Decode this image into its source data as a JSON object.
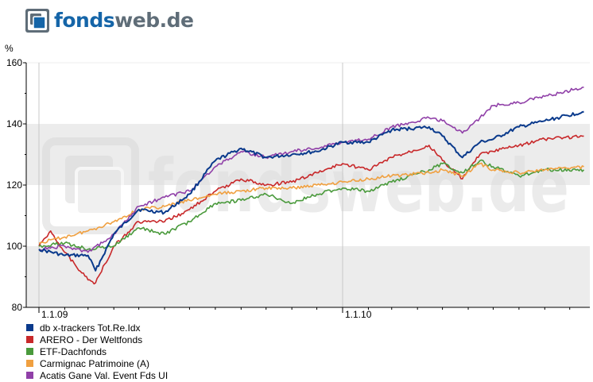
{
  "logo": {
    "part1": "fonds",
    "part2": "web.de",
    "watermark": "fondsweb.de"
  },
  "colors": {
    "band": "#ececec",
    "axis": "#000000",
    "grid": "#c8c8c8"
  },
  "chart_data": {
    "type": "line",
    "ylabel": "%",
    "ylim": [
      80,
      160
    ],
    "yticks": [
      80,
      100,
      120,
      140,
      160
    ],
    "xlim": [
      "2009-01-01",
      "2010-10-18"
    ],
    "xticks": [
      {
        "label": "1.1.09",
        "x": "2009-01-01"
      },
      {
        "label": "1.1.10",
        "x": "2010-01-01"
      }
    ],
    "bands": [
      [
        100,
        80
      ],
      [
        140,
        120
      ]
    ],
    "series": [
      {
        "name": "db x-trackers Tot.Re.Idx",
        "color": "#0a3a8c",
        "x": [
          "2009-01-01",
          "2009-02-01",
          "2009-03-01",
          "2009-03-10",
          "2009-04-01",
          "2009-05-01",
          "2009-06-01",
          "2009-07-01",
          "2009-08-01",
          "2009-09-01",
          "2009-10-01",
          "2009-11-01",
          "2009-12-01",
          "2010-01-01",
          "2010-02-01",
          "2010-03-01",
          "2010-04-15",
          "2010-05-01",
          "2010-05-25",
          "2010-06-15",
          "2010-07-01",
          "2010-08-01",
          "2010-09-01",
          "2010-10-18"
        ],
        "values": [
          99,
          97,
          97,
          92,
          104,
          112,
          111,
          117,
          128,
          132,
          129,
          130,
          131,
          134,
          134,
          138,
          139,
          136,
          129,
          134,
          135,
          139,
          141,
          144
        ]
      },
      {
        "name": "ARERO - Der Weltfonds",
        "color": "#c8282a",
        "x": [
          "2009-01-01",
          "2009-01-15",
          "2009-02-01",
          "2009-03-01",
          "2009-03-10",
          "2009-04-01",
          "2009-05-01",
          "2009-06-01",
          "2009-07-01",
          "2009-08-01",
          "2009-09-01",
          "2009-10-01",
          "2009-11-01",
          "2009-12-01",
          "2010-01-01",
          "2010-02-01",
          "2010-03-01",
          "2010-04-15",
          "2010-05-01",
          "2010-05-25",
          "2010-06-15",
          "2010-07-01",
          "2010-08-01",
          "2010-09-01",
          "2010-10-18"
        ],
        "values": [
          100,
          105,
          98,
          89,
          88,
          100,
          108,
          108,
          112,
          118,
          122,
          120,
          121,
          124,
          127,
          125,
          129,
          133,
          128,
          122,
          130,
          131,
          133,
          135,
          136
        ]
      },
      {
        "name": "ETF-Dachfonds",
        "color": "#4a9a3c",
        "x": [
          "2009-01-01",
          "2009-02-01",
          "2009-03-01",
          "2009-04-01",
          "2009-05-01",
          "2009-06-01",
          "2009-07-01",
          "2009-08-01",
          "2009-09-01",
          "2009-10-01",
          "2009-11-01",
          "2009-12-01",
          "2010-01-01",
          "2010-02-01",
          "2010-03-01",
          "2010-04-15",
          "2010-05-01",
          "2010-05-25",
          "2010-06-15",
          "2010-07-01",
          "2010-08-01",
          "2010-09-01",
          "2010-10-18"
        ],
        "values": [
          100,
          101,
          99,
          100,
          106,
          104,
          108,
          114,
          115,
          117,
          114,
          117,
          119,
          118,
          121,
          125,
          127,
          124,
          128,
          126,
          123,
          125,
          125
        ]
      },
      {
        "name": "Carmignac Patrimoine (A)",
        "color": "#f0a040",
        "x": [
          "2009-01-01",
          "2009-02-01",
          "2009-03-01",
          "2009-04-01",
          "2009-05-01",
          "2009-06-01",
          "2009-07-01",
          "2009-08-01",
          "2009-09-01",
          "2009-10-01",
          "2009-11-01",
          "2009-12-01",
          "2010-01-01",
          "2010-02-01",
          "2010-03-01",
          "2010-04-15",
          "2010-05-01",
          "2010-05-25",
          "2010-06-15",
          "2010-07-01",
          "2010-08-01",
          "2010-09-01",
          "2010-10-18"
        ],
        "values": [
          101,
          103,
          105,
          108,
          112,
          113,
          115,
          117,
          118,
          119,
          119,
          120,
          121,
          122,
          123,
          124,
          125,
          123,
          127,
          125,
          124,
          125,
          126
        ]
      },
      {
        "name": "Acatis Gane Val. Event Fds UI",
        "color": "#9040a8",
        "x": [
          "2009-01-01",
          "2009-02-01",
          "2009-03-01",
          "2009-04-01",
          "2009-05-01",
          "2009-06-01",
          "2009-07-01",
          "2009-08-01",
          "2009-09-01",
          "2009-10-01",
          "2009-11-01",
          "2009-12-01",
          "2010-01-01",
          "2010-02-01",
          "2010-03-01",
          "2010-04-15",
          "2010-05-01",
          "2010-05-25",
          "2010-06-15",
          "2010-07-01",
          "2010-08-01",
          "2010-09-01",
          "2010-10-18"
        ],
        "values": [
          99,
          100,
          98,
          104,
          113,
          116,
          118,
          126,
          131,
          129,
          131,
          132,
          134,
          135,
          139,
          142,
          141,
          137,
          142,
          146,
          147,
          149,
          152
        ]
      }
    ]
  }
}
